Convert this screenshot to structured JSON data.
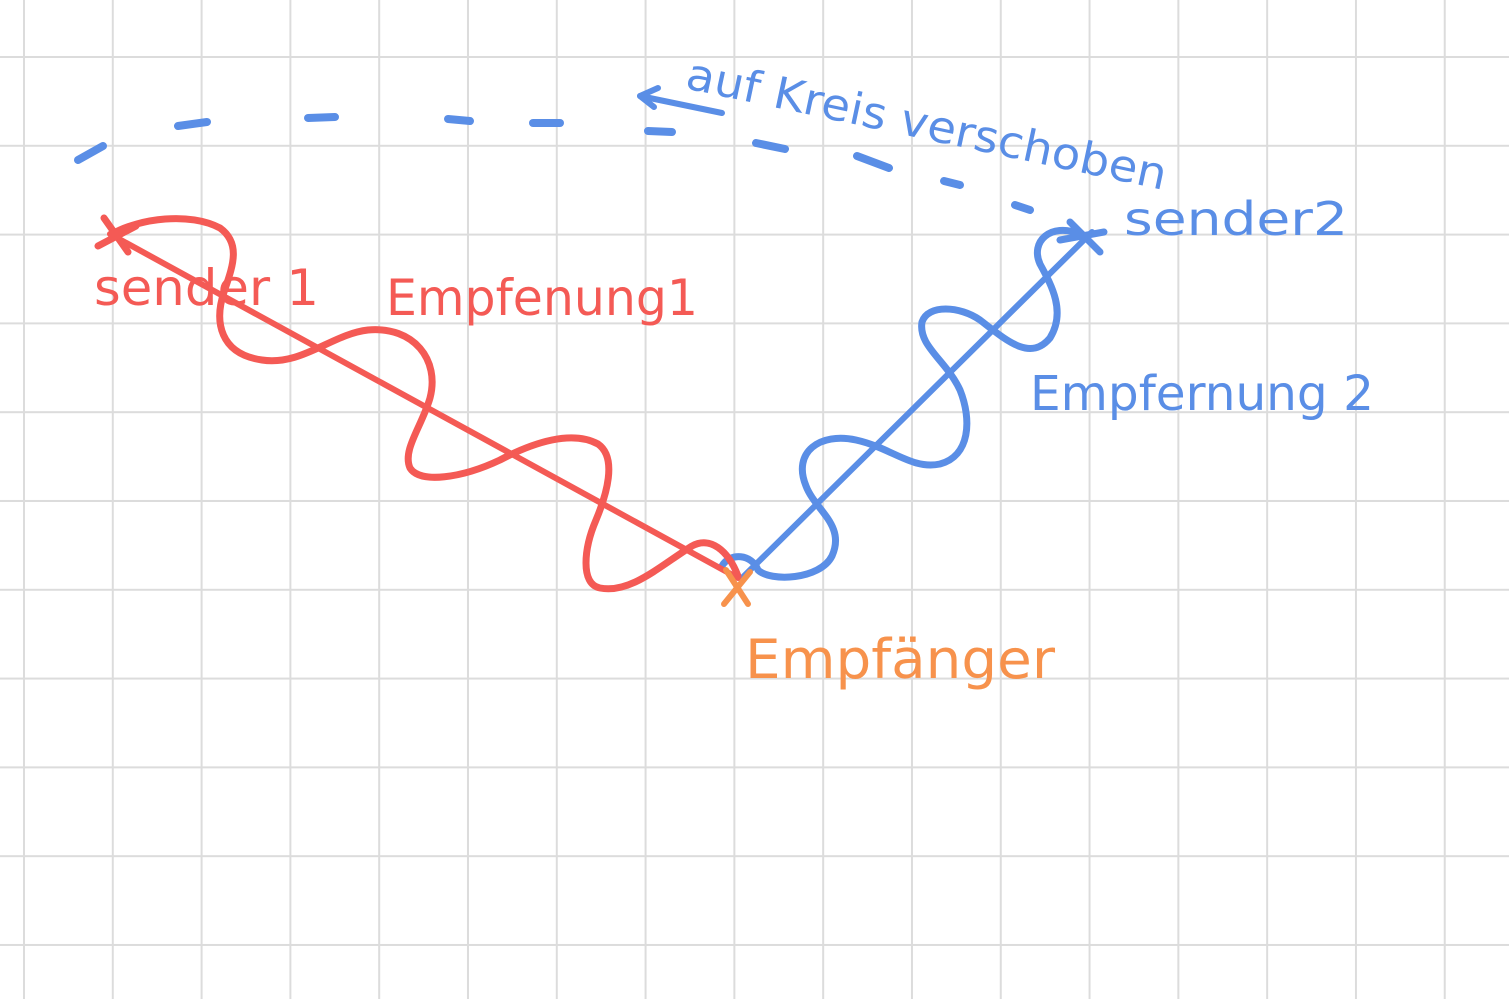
{
  "colors": {
    "red": "#f45a55",
    "blue": "#5a8ee6",
    "orange": "#f7924c",
    "grid": "#dcdcdc"
  },
  "labels": {
    "sender1": "sender 1",
    "distance1": "Empfenung1",
    "sender2": "sender2",
    "distance2": "Empfernung 2",
    "receiver": "Empfänger",
    "circle_note": "auf Kreis verschoben"
  }
}
